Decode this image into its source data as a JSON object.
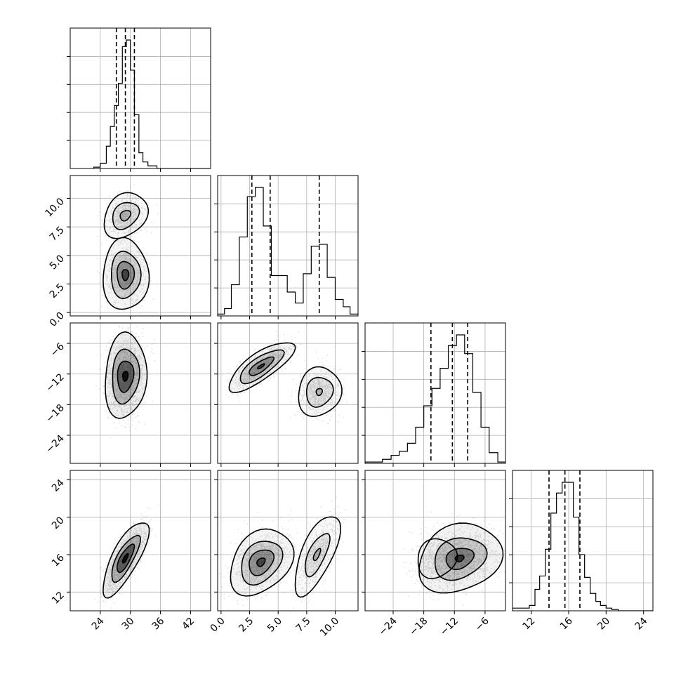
{
  "chart_data": {
    "type": "corner",
    "grid": true,
    "colors": {
      "points": "#9a9a9a",
      "density": "#000000",
      "lines": "#000000",
      "grid": "#b0b0b0"
    },
    "parameters": [
      {
        "index": 0,
        "range": [
          18,
          46
        ],
        "ticks": [
          24,
          30,
          36,
          42
        ],
        "tick_labels": [
          "24",
          "30",
          "36",
          "42"
        ],
        "quantiles": [
          27.2,
          29.0,
          30.8
        ]
      },
      {
        "index": 1,
        "range": [
          -0.3,
          12.0
        ],
        "ticks": [
          0.0,
          2.5,
          5.0,
          7.5,
          10.0
        ],
        "tick_labels": [
          "0.0",
          "2.5",
          "5.0",
          "7.5",
          "10.0"
        ],
        "quantiles": [
          2.7,
          4.3,
          8.6
        ]
      },
      {
        "index": 2,
        "range": [
          -29.5,
          -2.0
        ],
        "ticks": [
          -24,
          -18,
          -12,
          -6
        ],
        "tick_labels": [
          "−24",
          "−18",
          "−12",
          "−6"
        ],
        "quantiles": [
          -16.6,
          -12.4,
          -9.4
        ]
      },
      {
        "index": 3,
        "range": [
          10.0,
          25.0
        ],
        "ticks": [
          12,
          16,
          20,
          24
        ],
        "tick_labels": [
          "12",
          "16",
          "20",
          "24"
        ],
        "quantiles": [
          13.9,
          15.6,
          17.2
        ]
      }
    ],
    "histograms": [
      {
        "param": 0,
        "edges": [
          22.7,
          24.0,
          25.2,
          26.0,
          26.8,
          27.6,
          28.4,
          29.2,
          30.0,
          30.8,
          31.7,
          32.5,
          33.5,
          35.3,
          46
        ],
        "counts": [
          1,
          4,
          17,
          32,
          48,
          65,
          93,
          98,
          75,
          41,
          12,
          5,
          2,
          0
        ]
      },
      {
        "param": 1,
        "edges": [
          -0.3,
          0.3,
          0.9,
          1.6,
          2.3,
          3.0,
          3.7,
          4.4,
          5.1,
          5.8,
          6.5,
          7.2,
          7.9,
          8.6,
          9.3,
          10.0,
          10.7,
          11.3,
          12.0
        ],
        "counts": [
          1,
          4,
          17,
          43,
          65,
          70,
          49,
          22,
          22,
          13,
          7,
          23,
          38,
          39,
          21,
          9,
          5,
          1
        ]
      },
      {
        "param": 2,
        "edges": [
          -29.5,
          -26.1,
          -24.4,
          -22.8,
          -21.2,
          -19.6,
          -18.0,
          -16.4,
          -14.8,
          -13.2,
          -11.6,
          -10.0,
          -8.4,
          -6.8,
          -5.2,
          -3.5,
          -2.0
        ],
        "counts": [
          1,
          3,
          6,
          9,
          15,
          27,
          43,
          56,
          71,
          88,
          96,
          82,
          53,
          27,
          8,
          1
        ]
      },
      {
        "param": 3,
        "edges": [
          10.0,
          11.8,
          12.4,
          12.9,
          13.5,
          14.1,
          14.7,
          15.3,
          15.9,
          16.5,
          17.1,
          17.7,
          18.3,
          18.9,
          19.4,
          20.0,
          20.6,
          21.3,
          22.3,
          25.0
        ],
        "counts": [
          2,
          4,
          16,
          26,
          46,
          73,
          88,
          96,
          96,
          70,
          42,
          25,
          13,
          7,
          4,
          2,
          1,
          0,
          0
        ]
      }
    ],
    "scatter_panels": [
      {
        "x_param": 0,
        "y_param": 1,
        "clusters": [
          {
            "mean": [
              29.0,
              3.3
            ],
            "sd": [
              1.9,
              1.2
            ],
            "rho": 0.0,
            "weight": 0.62,
            "levels": [
              [
                2.4,
                2.6
              ],
              [
                1.55,
                1.7
              ],
              [
                0.9,
                1.0
              ],
              [
                0.35,
                0.4
              ]
            ]
          },
          {
            "mean": [
              29.0,
              8.5
            ],
            "sd": [
              1.9,
              0.9
            ],
            "rho": 0.25,
            "weight": 0.38,
            "levels": [
              [
                2.3,
                2.2
              ],
              [
                1.4,
                1.3
              ],
              [
                0.55,
                0.5
              ]
            ]
          }
        ]
      },
      {
        "x_param": 0,
        "y_param": 2,
        "clusters": [
          {
            "mean": [
              29.0,
              -12.4
            ],
            "sd": [
              1.8,
              3.8
            ],
            "rho": 0.1,
            "weight": 1.0,
            "levels": [
              [
                2.3,
                2.2
              ],
              [
                1.5,
                1.4
              ],
              [
                0.9,
                0.8
              ],
              [
                0.3,
                0.25
              ]
            ]
          }
        ]
      },
      {
        "x_param": 1,
        "y_param": 2,
        "clusters": [
          {
            "mean": [
              3.5,
              -10.5
            ],
            "sd": [
              1.2,
              2.1
            ],
            "rho": 0.75,
            "weight": 0.62,
            "levels": [
              [
                2.4,
                2.2
              ],
              [
                1.6,
                1.5
              ],
              [
                0.9,
                0.8
              ],
              [
                0.25,
                0.2
              ]
            ]
          },
          {
            "mean": [
              8.6,
              -15.5
            ],
            "sd": [
              0.9,
              2.4
            ],
            "rho": 0.1,
            "weight": 0.38,
            "levels": [
              [
                2.1,
                2.0
              ],
              [
                1.3,
                1.2
              ],
              [
                0.3,
                0.28
              ]
            ]
          }
        ]
      },
      {
        "x_param": 0,
        "y_param": 3,
        "clusters": [
          {
            "mean": [
              29.0,
              15.6
            ],
            "sd": [
              1.9,
              1.7
            ],
            "rho": 0.75,
            "weight": 1.0,
            "levels": [
              [
                2.4,
                2.3
              ],
              [
                1.5,
                1.4
              ],
              [
                0.9,
                0.85
              ],
              [
                0.3,
                0.28
              ]
            ]
          }
        ]
      },
      {
        "x_param": 1,
        "y_param": 3,
        "clusters": [
          {
            "mean": [
              3.5,
              15.2
            ],
            "sd": [
              1.2,
              1.6
            ],
            "rho": 0.3,
            "weight": 0.62,
            "levels": [
              [
                2.3,
                2.2
              ],
              [
                1.5,
                1.45
              ],
              [
                0.9,
                0.85
              ],
              [
                0.3,
                0.28
              ]
            ]
          },
          {
            "mean": [
              8.4,
              16.0
            ],
            "sd": [
              0.9,
              2.0
            ],
            "rho": 0.65,
            "weight": 0.38,
            "levels": [
              [
                2.2,
                2.1
              ],
              [
                1.2,
                1.1
              ],
              [
                0.35,
                0.3
              ]
            ]
          }
        ]
      },
      {
        "x_param": 2,
        "y_param": 3,
        "clusters": [
          {
            "mean": [
              -11.0,
              15.6
            ],
            "sd": [
              3.4,
              1.6
            ],
            "rho": 0.2,
            "weight": 0.75,
            "levels": [
              [
                2.4,
                2.3
              ],
              [
                1.5,
                1.4
              ],
              [
                0.8,
                0.7
              ],
              [
                0.25,
                0.22
              ]
            ]
          },
          {
            "mean": [
              -15.5,
              15.6
            ],
            "sd": [
              2.4,
              1.4
            ],
            "rho": 0.1,
            "weight": 0.25,
            "levels": [
              [
                1.6,
                1.5
              ]
            ]
          }
        ]
      }
    ]
  }
}
